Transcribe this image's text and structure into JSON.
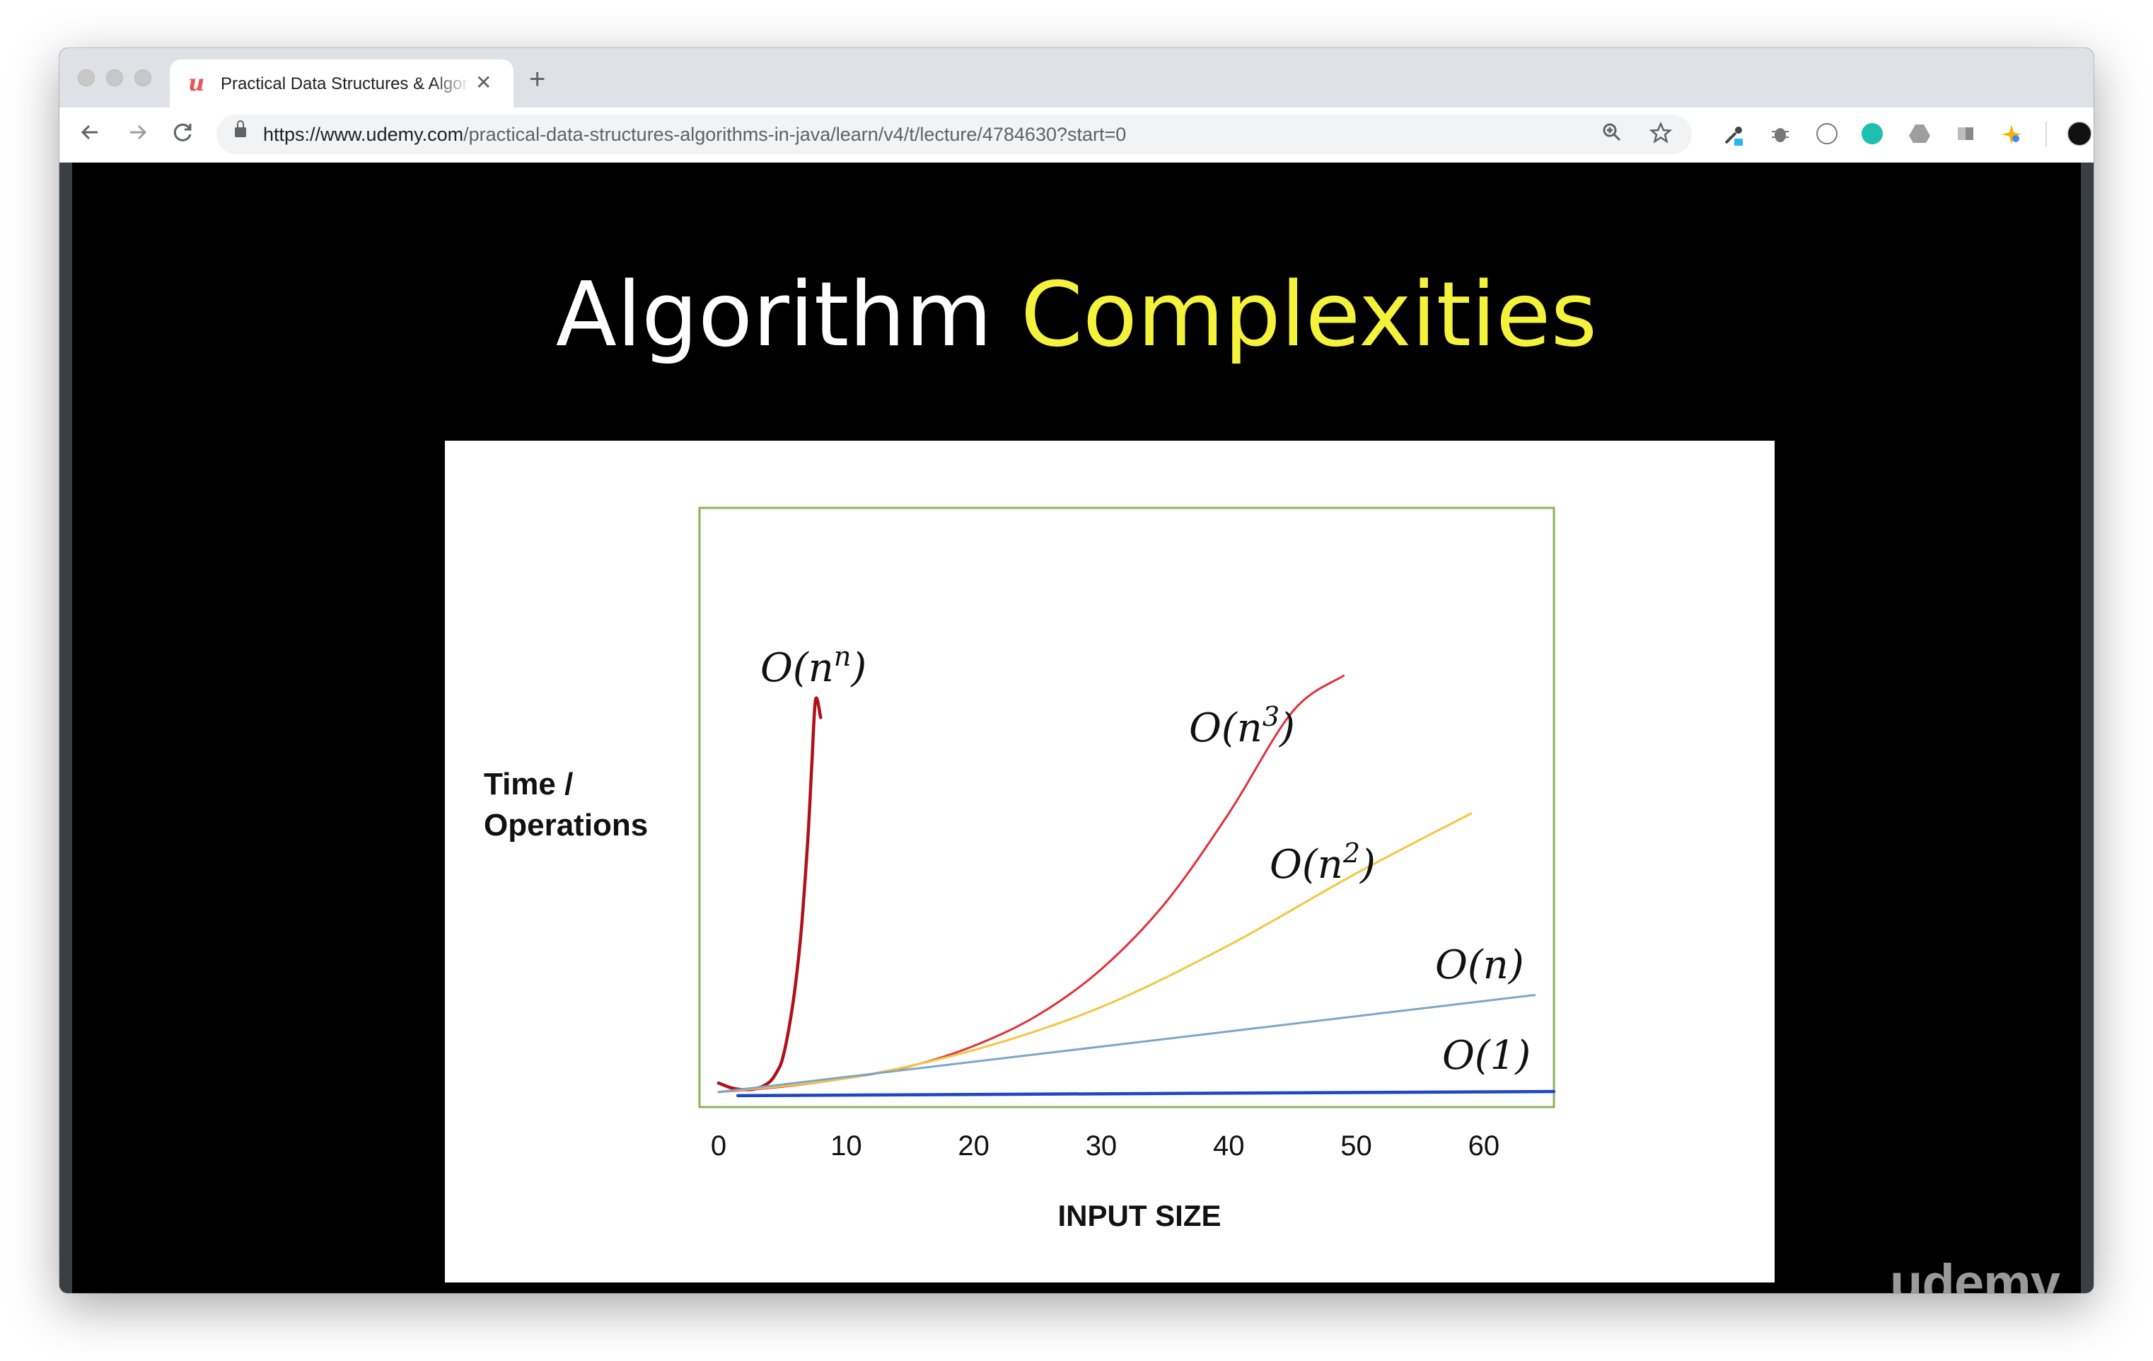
{
  "browser": {
    "tab": {
      "title": "Practical Data Structures & Algorithms in Java"
    },
    "url": {
      "host": "https://www.udemy.com",
      "path": "/practical-data-structures-algorithms-in-java/learn/v4/t/lecture/4784630?start=0"
    },
    "icons": {
      "back": "arrow-left-icon",
      "forward": "arrow-right-icon",
      "reload": "reload-icon",
      "zoom": "zoom-icon",
      "bookmark": "star-icon",
      "menu": "kebab-menu-icon"
    }
  },
  "slide": {
    "title_main": "Algorithm",
    "title_accent": "Complexities",
    "accent_color": "#f5f23c"
  },
  "chart_data": {
    "type": "line",
    "title": "",
    "xlabel": "INPUT SIZE",
    "ylabel": "Time / Operations",
    "ylabel_lines": [
      "Time /",
      "Operations"
    ],
    "x_ticks": [
      0,
      10,
      20,
      30,
      40,
      50,
      60
    ],
    "xlim": [
      -1.5,
      65.5
    ],
    "ylim": [
      0,
      100
    ],
    "grid": false,
    "frame_color": "#8db35a",
    "series": [
      {
        "name": "O(n^n)",
        "color": "#b0101c",
        "x": [
          0,
          1,
          2,
          3,
          4,
          4.6,
          5,
          5.5,
          6,
          6.5,
          7,
          7.3,
          7.6,
          8
        ],
        "y": [
          4,
          3.2,
          2.9,
          3.1,
          4.2,
          6,
          8,
          13,
          20,
          30,
          45,
          57,
          68,
          65
        ]
      },
      {
        "name": "O(n^3)",
        "color": "#e0323c",
        "x": [
          0,
          5,
          10,
          15,
          20,
          25,
          30,
          35,
          40,
          45,
          49
        ],
        "y": [
          2.5,
          3.4,
          4.8,
          6.8,
          10.2,
          15.3,
          23,
          34,
          49,
          66,
          72
        ]
      },
      {
        "name": "O(n^2)",
        "color": "#f2c744",
        "x": [
          0,
          10,
          20,
          30,
          40,
          50,
          59
        ],
        "y": [
          2.5,
          4.8,
          9.5,
          16.7,
          27,
          39,
          49
        ]
      },
      {
        "name": "O(n)",
        "color": "#7ea6c8",
        "x": [
          0,
          64
        ],
        "y": [
          2.5,
          18.7
        ]
      },
      {
        "name": "O(1)",
        "color": "#1f45c8",
        "x": [
          1.5,
          65.5
        ],
        "y": [
          1.9,
          2.6
        ]
      }
    ]
  },
  "watermark": "udemy"
}
